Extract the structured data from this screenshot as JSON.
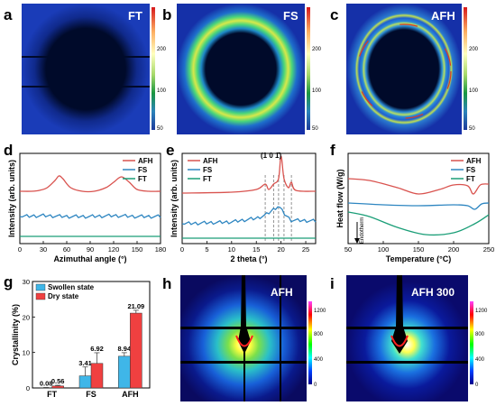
{
  "panels": {
    "a": {
      "letter": "a",
      "title": "FT"
    },
    "b": {
      "letter": "b",
      "title": "FS"
    },
    "c": {
      "letter": "c",
      "title": "AFH"
    },
    "d": {
      "letter": "d"
    },
    "e": {
      "letter": "e",
      "annotation": "(1 0 1̄)"
    },
    "f": {
      "letter": "f",
      "annotation": "Endotherm"
    },
    "g": {
      "letter": "g"
    },
    "h": {
      "letter": "h",
      "title": "AFH"
    },
    "i": {
      "letter": "i",
      "title": "AFH 300"
    }
  },
  "colorbar_top": {
    "ticks": [
      "200",
      "100",
      "50"
    ],
    "colors": [
      "#d7191c",
      "#fdae61",
      "#ffffbf",
      "#a6d96a",
      "#1a9641",
      "#2b83ba",
      "#1d3a9b"
    ]
  },
  "colorbar_bottom": {
    "ticks": [
      "1200",
      "800",
      "400",
      "0"
    ],
    "colors": [
      "#ff40ff",
      "#ff0000",
      "#ffff00",
      "#00ff00",
      "#00ffff",
      "#0040ff",
      "#00008b"
    ]
  },
  "series_colors": {
    "AFH": "#d9534f",
    "FS": "#2e86c1",
    "FT": "#1a9e77"
  },
  "chart_data": [
    {
      "panel": "d",
      "type": "line",
      "xlabel": "Azimuthal angle (°)",
      "ylabel": "Intensity (arb. units)",
      "xlim": [
        0,
        180
      ],
      "xticks": [
        0,
        30,
        60,
        90,
        120,
        150,
        180
      ],
      "legend": [
        "AFH",
        "FS",
        "FT"
      ],
      "legend_position": "top-right",
      "series": [
        {
          "name": "AFH",
          "x": [
            0,
            15,
            25,
            35,
            45,
            50,
            55,
            65,
            80,
            95,
            110,
            120,
            130,
            140,
            150,
            165,
            180
          ],
          "y": [
            0.58,
            0.58,
            0.59,
            0.62,
            0.7,
            0.75,
            0.72,
            0.62,
            0.58,
            0.58,
            0.62,
            0.68,
            0.74,
            0.68,
            0.6,
            0.58,
            0.58
          ]
        },
        {
          "name": "FS",
          "x": [
            0,
            30,
            60,
            90,
            120,
            150,
            180
          ],
          "y": [
            0.3,
            0.31,
            0.3,
            0.3,
            0.31,
            0.3,
            0.3
          ]
        },
        {
          "name": "FT",
          "x": [
            0,
            180
          ],
          "y": [
            0.08,
            0.08
          ]
        }
      ]
    },
    {
      "panel": "e",
      "type": "line",
      "xlabel": "2 theta (°)",
      "ylabel": "Intensity (arb. units)",
      "xlim": [
        0,
        27
      ],
      "xticks": [
        0,
        5,
        10,
        15,
        20,
        25
      ],
      "legend": [
        "AFH",
        "FS",
        "FT"
      ],
      "legend_position": "top-left",
      "series": [
        {
          "name": "AFH",
          "x": [
            0,
            10,
            15,
            16.8,
            17.5,
            18.5,
            19.5,
            20.0,
            20.6,
            21.5,
            22.1,
            23,
            27
          ],
          "y": [
            0.56,
            0.57,
            0.6,
            0.66,
            0.6,
            0.66,
            0.72,
            0.97,
            0.72,
            0.62,
            0.68,
            0.59,
            0.58
          ]
        },
        {
          "name": "FS",
          "x": [
            0,
            10,
            15,
            17,
            19.5,
            20.5,
            22,
            27
          ],
          "y": [
            0.22,
            0.24,
            0.28,
            0.32,
            0.42,
            0.34,
            0.26,
            0.25
          ]
        },
        {
          "name": "FT",
          "x": [
            0,
            27
          ],
          "y": [
            0.06,
            0.06
          ]
        }
      ],
      "dashed_lines_x": [
        16.8,
        18.5,
        19.5,
        20.6,
        22.1
      ]
    },
    {
      "panel": "f",
      "type": "line",
      "xlabel": "Temperature (°C)",
      "ylabel": "Heat flow (W/g)",
      "xlim": [
        50,
        250
      ],
      "xticks": [
        50,
        100,
        150,
        200,
        250
      ],
      "legend": [
        "AFH",
        "FS",
        "FT"
      ],
      "legend_position": "top-right",
      "series": [
        {
          "name": "AFH",
          "x": [
            50,
            80,
            120,
            150,
            180,
            200,
            220,
            228,
            238,
            250
          ],
          "y": [
            0.72,
            0.7,
            0.62,
            0.55,
            0.6,
            0.65,
            0.64,
            0.55,
            0.65,
            0.66
          ]
        },
        {
          "name": "FS",
          "x": [
            50,
            100,
            150,
            200,
            220,
            230,
            240,
            250
          ],
          "y": [
            0.45,
            0.43,
            0.42,
            0.43,
            0.42,
            0.38,
            0.44,
            0.45
          ]
        },
        {
          "name": "FT",
          "x": [
            50,
            80,
            120,
            160,
            200,
            230,
            250
          ],
          "y": [
            0.35,
            0.3,
            0.18,
            0.1,
            0.12,
            0.22,
            0.32
          ]
        }
      ]
    },
    {
      "panel": "g",
      "type": "bar",
      "ylabel": "Crystallinity (%)",
      "categories": [
        "FT",
        "FS",
        "AFH"
      ],
      "ylim": [
        0,
        30
      ],
      "yticks": [
        0,
        10,
        20,
        30
      ],
      "legend_position": "top-left",
      "series": [
        {
          "name": "Swollen state",
          "values": [
            0.08,
            3.41,
            8.94
          ],
          "errors": [
            0.05,
            2.5,
            1.0
          ],
          "labels": [
            "0.08",
            "3.41",
            "8.94"
          ]
        },
        {
          "name": "Dry state",
          "values": [
            0.56,
            6.92,
            21.09
          ],
          "errors": [
            0.2,
            3.0,
            0.8
          ],
          "labels": [
            "0.56",
            "6.92",
            "21.09"
          ]
        }
      ]
    }
  ]
}
